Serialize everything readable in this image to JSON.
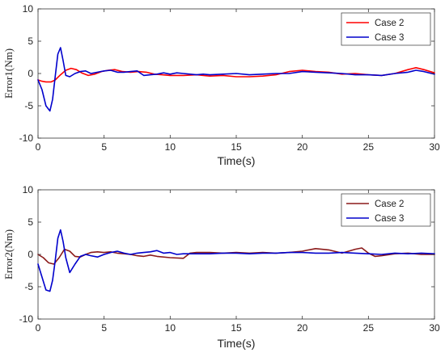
{
  "chart_data": [
    {
      "type": "line",
      "xlabel": "Time(s)",
      "ylabel": "Error1(Nm)",
      "xlim": [
        0,
        30
      ],
      "ylim": [
        -10,
        10
      ],
      "xticks": [
        0,
        5,
        10,
        15,
        20,
        25,
        30
      ],
      "yticks": [
        -10,
        -5,
        0,
        5,
        10
      ],
      "grid": false,
      "legend_position": "top-right",
      "series": [
        {
          "name": "Case 2",
          "color": "#ff0000",
          "x": [
            0,
            0.3,
            0.6,
            1.0,
            1.3,
            1.7,
            2.1,
            2.5,
            2.9,
            3.3,
            3.8,
            4.3,
            4.8,
            5.3,
            5.8,
            6.4,
            7.0,
            7.6,
            8.2,
            8.8,
            9.4,
            10.0,
            11.0,
            12.0,
            13.0,
            14.0,
            15.0,
            16.0,
            17.0,
            18.0,
            19.0,
            20.0,
            21.0,
            22.0,
            23.0,
            24.0,
            25.0,
            26.0,
            27.0,
            28.0,
            28.6,
            29.2,
            30.0
          ],
          "y": [
            -1.0,
            -1.2,
            -1.3,
            -1.3,
            -1.0,
            -0.2,
            0.5,
            0.8,
            0.6,
            0.1,
            -0.3,
            -0.1,
            0.3,
            0.5,
            0.6,
            0.3,
            0.2,
            0.3,
            0.2,
            -0.1,
            -0.2,
            -0.3,
            -0.3,
            -0.2,
            -0.4,
            -0.3,
            -0.5,
            -0.5,
            -0.4,
            -0.2,
            0.3,
            0.5,
            0.3,
            0.2,
            -0.1,
            0.0,
            -0.2,
            -0.3,
            0.0,
            0.6,
            0.9,
            0.6,
            0.1
          ]
        },
        {
          "name": "Case 3",
          "color": "#0000cc",
          "x": [
            0,
            0.3,
            0.6,
            0.9,
            1.1,
            1.3,
            1.5,
            1.7,
            1.9,
            2.1,
            2.4,
            2.8,
            3.2,
            3.6,
            4.0,
            4.5,
            5.0,
            5.5,
            6.0,
            6.5,
            7.0,
            7.5,
            8.0,
            8.5,
            9.0,
            9.5,
            10.0,
            10.5,
            11.0,
            12.0,
            12.5,
            13.0,
            14.0,
            15.0,
            16.0,
            17.0,
            18.0,
            19.0,
            20.0,
            21.0,
            22.0,
            23.0,
            24.0,
            25.0,
            26.0,
            27.0,
            28.0,
            28.6,
            29.2,
            30.0
          ],
          "y": [
            -1.0,
            -2.5,
            -5.0,
            -5.8,
            -4.0,
            -0.5,
            3.0,
            4.0,
            2.0,
            -0.3,
            -0.5,
            0.0,
            0.3,
            0.4,
            0.0,
            0.2,
            0.4,
            0.5,
            0.2,
            0.2,
            0.3,
            0.4,
            -0.3,
            -0.2,
            -0.1,
            0.1,
            -0.1,
            0.1,
            0.0,
            -0.2,
            -0.1,
            -0.2,
            -0.1,
            0.0,
            -0.2,
            -0.1,
            0.0,
            0.0,
            0.3,
            0.2,
            0.1,
            0.0,
            -0.2,
            -0.2,
            -0.3,
            0.0,
            0.2,
            0.5,
            0.3,
            -0.1
          ]
        }
      ]
    },
    {
      "type": "line",
      "xlabel": "Time(s)",
      "ylabel": "Error2(Nm)",
      "xlim": [
        0,
        30
      ],
      "ylim": [
        -10,
        10
      ],
      "xticks": [
        0,
        5,
        10,
        15,
        20,
        25,
        30
      ],
      "yticks": [
        -10,
        -5,
        0,
        5,
        10
      ],
      "grid": false,
      "legend_position": "top-right",
      "series": [
        {
          "name": "Case 2",
          "color": "#8b1a1a",
          "x": [
            0,
            0.4,
            0.8,
            1.2,
            1.6,
            2.0,
            2.4,
            2.8,
            3.2,
            3.6,
            4.0,
            4.5,
            5.0,
            5.5,
            6.0,
            6.5,
            7.0,
            7.5,
            8.0,
            8.5,
            9.0,
            10.0,
            11.0,
            11.5,
            12.0,
            13.0,
            14.0,
            15.0,
            16.0,
            17.0,
            18.0,
            19.0,
            20.0,
            21.0,
            22.0,
            23.0,
            24.0,
            24.5,
            25.0,
            25.5,
            26.0,
            27.0,
            28.0,
            29.0,
            30.0
          ],
          "y": [
            0.0,
            -0.5,
            -1.3,
            -1.5,
            -0.5,
            0.8,
            0.5,
            -0.3,
            -0.4,
            0.0,
            0.3,
            0.4,
            0.3,
            0.4,
            0.2,
            0.1,
            0.0,
            -0.2,
            -0.3,
            -0.1,
            -0.3,
            -0.5,
            -0.6,
            0.2,
            0.3,
            0.3,
            0.2,
            0.3,
            0.2,
            0.3,
            0.2,
            0.3,
            0.5,
            0.9,
            0.7,
            0.2,
            0.8,
            1.0,
            0.2,
            -0.3,
            -0.2,
            0.1,
            0.2,
            0.0,
            0.0
          ]
        },
        {
          "name": "Case 3",
          "color": "#0000cc",
          "x": [
            0,
            0.3,
            0.6,
            0.9,
            1.1,
            1.3,
            1.5,
            1.7,
            1.9,
            2.1,
            2.4,
            2.8,
            3.2,
            3.6,
            4.0,
            4.5,
            5.0,
            5.5,
            6.0,
            6.5,
            7.0,
            7.5,
            8.0,
            8.5,
            9.0,
            9.5,
            10.0,
            10.5,
            11.0,
            12.0,
            13.0,
            14.0,
            15.0,
            16.0,
            17.0,
            18.0,
            19.0,
            20.0,
            21.0,
            22.0,
            23.0,
            24.0,
            25.0,
            26.0,
            27.0,
            28.0,
            29.0,
            30.0
          ],
          "y": [
            -1.5,
            -3.5,
            -5.5,
            -5.7,
            -4.0,
            -1.0,
            2.5,
            3.8,
            2.0,
            -0.5,
            -2.8,
            -1.5,
            -0.3,
            0.0,
            -0.2,
            -0.4,
            0.0,
            0.3,
            0.5,
            0.2,
            0.0,
            0.2,
            0.3,
            0.4,
            0.6,
            0.2,
            0.3,
            0.0,
            0.1,
            0.1,
            0.1,
            0.2,
            0.2,
            0.1,
            0.2,
            0.2,
            0.3,
            0.3,
            0.2,
            0.2,
            0.3,
            0.2,
            0.1,
            0.0,
            0.2,
            0.1,
            0.2,
            0.1
          ]
        }
      ]
    }
  ]
}
